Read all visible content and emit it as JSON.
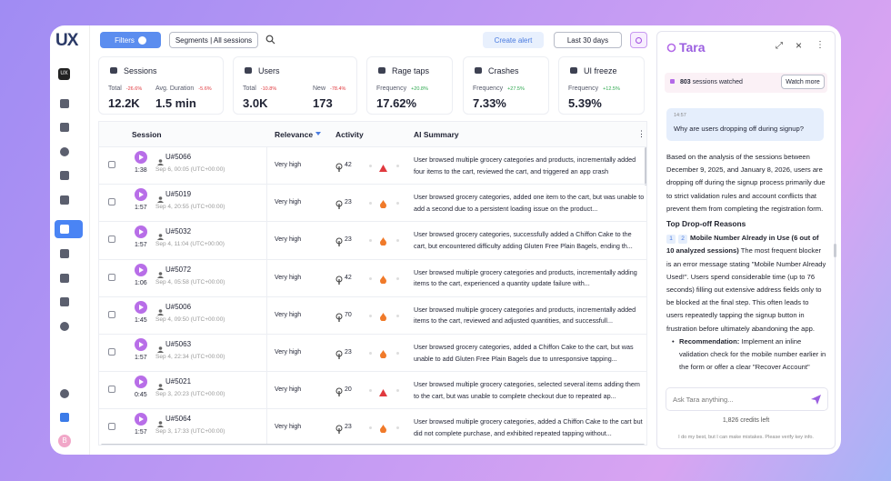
{
  "header": {
    "logo": "UX",
    "filters": "Filters",
    "segments": "Segments | All sessions",
    "create_alert": "Create alert",
    "date_range": "Last 30 days"
  },
  "metrics": [
    {
      "title": "Sessions",
      "stats": [
        {
          "label": "Total",
          "change": "-26.6%",
          "value": "12.2K"
        },
        {
          "label": "Avg. Duration",
          "change": "-5.6%",
          "value": "1.5 min"
        }
      ]
    },
    {
      "title": "Users",
      "stats": [
        {
          "label": "Total",
          "change": "-10.8%",
          "value": "3.0K"
        },
        {
          "label": "New",
          "change": "-78.4%",
          "value": "173"
        }
      ]
    },
    {
      "title": "Rage taps",
      "stats": [
        {
          "label": "Frequency",
          "change": "+20.8%",
          "value": "17.62%"
        }
      ]
    },
    {
      "title": "Crashes",
      "stats": [
        {
          "label": "Frequency",
          "change": "+27.5%",
          "value": "7.33%"
        }
      ]
    },
    {
      "title": "UI freeze",
      "stats": [
        {
          "label": "Frequency",
          "change": "+12.5%",
          "value": "5.39%"
        }
      ]
    }
  ],
  "table": {
    "columns": [
      "Session",
      "Relevance",
      "Activity",
      "AI Summary"
    ],
    "rows": [
      {
        "id": "U#5066",
        "duration": "1:38",
        "date": "Sep 6, 00:05 (UTC+00:00)",
        "relevance": "Very high",
        "taps": 42,
        "summary": "User browsed multiple grocery categories and products, incrementally added four items to the cart, reviewed the cart, and triggered an app crash"
      },
      {
        "id": "U#5019",
        "duration": "1:57",
        "date": "Sep 4, 20:55 (UTC+00:00)",
        "relevance": "Very high",
        "taps": 23,
        "summary": "User browsed grocery categories, added one item to the cart, but was unable to add a second due to a persistent loading issue on the product..."
      },
      {
        "id": "U#5032",
        "duration": "1:57",
        "date": "Sep 4, 11:04 (UTC+00:00)",
        "relevance": "Very high",
        "taps": 23,
        "summary": "User browsed grocery categories, successfully added a Chiffon Cake to the cart, but encountered difficulty adding Gluten Free Plain Bagels, ending th..."
      },
      {
        "id": "U#5072",
        "duration": "1:06",
        "date": "Sep 4, 05:58 (UTC+00:00)",
        "relevance": "Very high",
        "taps": 42,
        "summary": "User browsed multiple grocery categories and products, incrementally adding items to the cart, experienced a quantity update failure with..."
      },
      {
        "id": "U#5006",
        "duration": "1:45",
        "date": "Sep 4, 09:50 (UTC+00:00)",
        "relevance": "Very high",
        "taps": 70,
        "summary": "User browsed multiple grocery categories and products, incrementally added items to the cart, reviewed and adjusted quantities, and successfull..."
      },
      {
        "id": "U#5063",
        "duration": "1:57",
        "date": "Sep 4, 22:34 (UTC+00:00)",
        "relevance": "Very high",
        "taps": 23,
        "summary": "User browsed grocery categories, added a Chiffon Cake to the cart, but was unable to add Gluten Free Plain Bagels due to unresponsive tapping..."
      },
      {
        "id": "U#5021",
        "duration": "0:45",
        "date": "Sep 3, 20:23 (UTC+00:00)",
        "relevance": "Very high",
        "taps": 20,
        "summary": "User browsed multiple grocery categories, selected several items adding them to the cart, but was unable to complete checkout due to repeated ap..."
      },
      {
        "id": "U#5064",
        "duration": "1:57",
        "date": "Sep 3, 17:33 (UTC+00:00)",
        "relevance": "Very high",
        "taps": 23,
        "summary": "User browsed multiple grocery categories, added a Chiffon Cake to the cart but did not complete purchase, and exhibited repeated tapping without..."
      }
    ]
  },
  "assistant": {
    "title": "Tara",
    "sessions_count": "803",
    "sessions_label": "sessions watched",
    "watch_more": "Watch more",
    "question_time": "14:57",
    "question": "Why are users dropping off during signup?",
    "answer_intro": "Based on the analysis of the sessions between December 9, 2025, and January 8, 2026, users are dropping off during the signup process primarily due to strict validation rules and account conflicts that prevent them from completing the registration form.",
    "heading": "Top Drop-off Reasons",
    "reason_badges": [
      "1",
      "2"
    ],
    "reason_title": "Mobile Number Already in Use (6 out of 10 analyzed sessions)",
    "reason_text": "The most frequent blocker is an error message stating \"Mobile Number Already Used!\". Users spend considerable time (up to 76 seconds) filling out extensive address fields only to be blocked at the final step. This often leads to users repeatedly tapping the signup button in frustration before ultimately abandoning the app.",
    "recommendation_label": "Recommendation:",
    "recommendation_text": "Implement an inline validation check for the mobile number earlier in the form or offer a clear \"Recover Account\"",
    "input_placeholder": "Ask Tara anything...",
    "credits": "1,826 credits left",
    "disclaimer": "I do my best, but I can make mistakes. Please verify key info."
  },
  "user": {
    "avatar": "B"
  }
}
